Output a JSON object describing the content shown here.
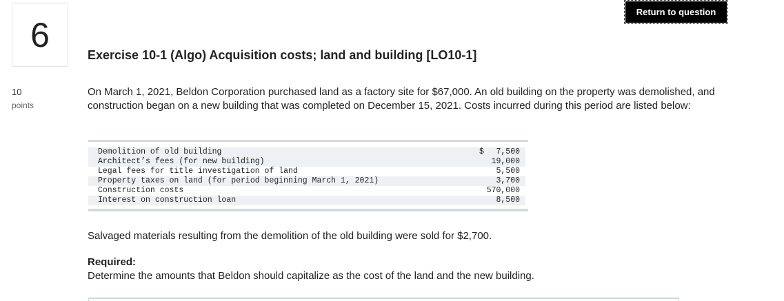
{
  "question": {
    "number": "6",
    "points_value": "10",
    "points_label": "points",
    "return_label": "Return to question",
    "title": "Exercise 10-1 (Algo) Acquisition costs; land and building [LO10-1]",
    "intro": "On March 1, 2021, Beldon Corporation purchased land as a factory site for $67,000. An old building on the property was demolished, and construction began on a new building that was completed on December 15, 2021. Costs incurred during this period are listed below:",
    "salvage": "Salvaged materials resulting from the demolition of the old building were sold for $2,700.",
    "required_label": "Required:",
    "required_text": "Determine the amounts that Beldon should capitalize as the cost of the land and the new building."
  },
  "costs": {
    "currency_symbol": "$",
    "rows": [
      {
        "description": "Demolition of old building",
        "amount": "7,500"
      },
      {
        "description": "Architect’s fees (for new building)",
        "amount": "19,000"
      },
      {
        "description": "Legal fees for title investigation of land",
        "amount": "5,500"
      },
      {
        "description": "Property taxes on land (for period beginning March 1, 2021)",
        "amount": "3,700"
      },
      {
        "description": "Construction costs",
        "amount": "570,000"
      },
      {
        "description": "Interest on construction loan",
        "amount": "8,500"
      }
    ]
  }
}
